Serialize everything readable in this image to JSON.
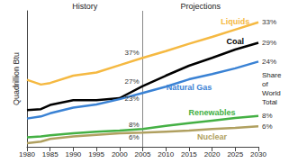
{
  "chart_data": {
    "type": "line",
    "y_label": "Quadrillion Btu",
    "x": [
      1980,
      1983,
      1985,
      1990,
      1995,
      2000,
      2005,
      2010,
      2015,
      2020,
      2025,
      2030
    ],
    "xlim": [
      1980,
      2030
    ],
    "xticks": [
      1980,
      1985,
      1990,
      1995,
      2000,
      2005,
      2010,
      2015,
      2020,
      2025,
      2030
    ],
    "ylim": [
      0,
      260
    ],
    "tick_labels": "x",
    "grid": false,
    "vline": 2005,
    "period_labels": [
      "History",
      "Projections"
    ],
    "share_title": "Share of World Total",
    "series": [
      {
        "name": "Liquids",
        "color": "#f5b942",
        "values": [
          128,
          119,
          122,
          136,
          142,
          156,
          170,
          183,
          197,
          210,
          224,
          238
        ],
        "share_labels": [
          "37%",
          "33%"
        ]
      },
      {
        "name": "Coal",
        "color": "#000000",
        "values": [
          70,
          72,
          80,
          89,
          89,
          93,
          116,
          136,
          155,
          170,
          186,
          199
        ],
        "share_labels": [
          "27%",
          "29%"
        ]
      },
      {
        "name": "Natural Gas",
        "color": "#3a82d4",
        "values": [
          54,
          58,
          64,
          75,
          81,
          91,
          103,
          115,
          129,
          139,
          150,
          163
        ],
        "share_labels": [
          "23%",
          "24%"
        ]
      },
      {
        "name": "Renewables",
        "color": "#44b044",
        "values": [
          18,
          20,
          22,
          26,
          29,
          31,
          34,
          40,
          45,
          50,
          55,
          59
        ],
        "share_labels": [
          "8%",
          "8%"
        ]
      },
      {
        "name": "Nuclear",
        "color": "#b0a060",
        "values": [
          7,
          10,
          15,
          20,
          23,
          26,
          27,
          29,
          31,
          34,
          36,
          39
        ],
        "share_labels": [
          "6%",
          "6%"
        ]
      }
    ]
  }
}
